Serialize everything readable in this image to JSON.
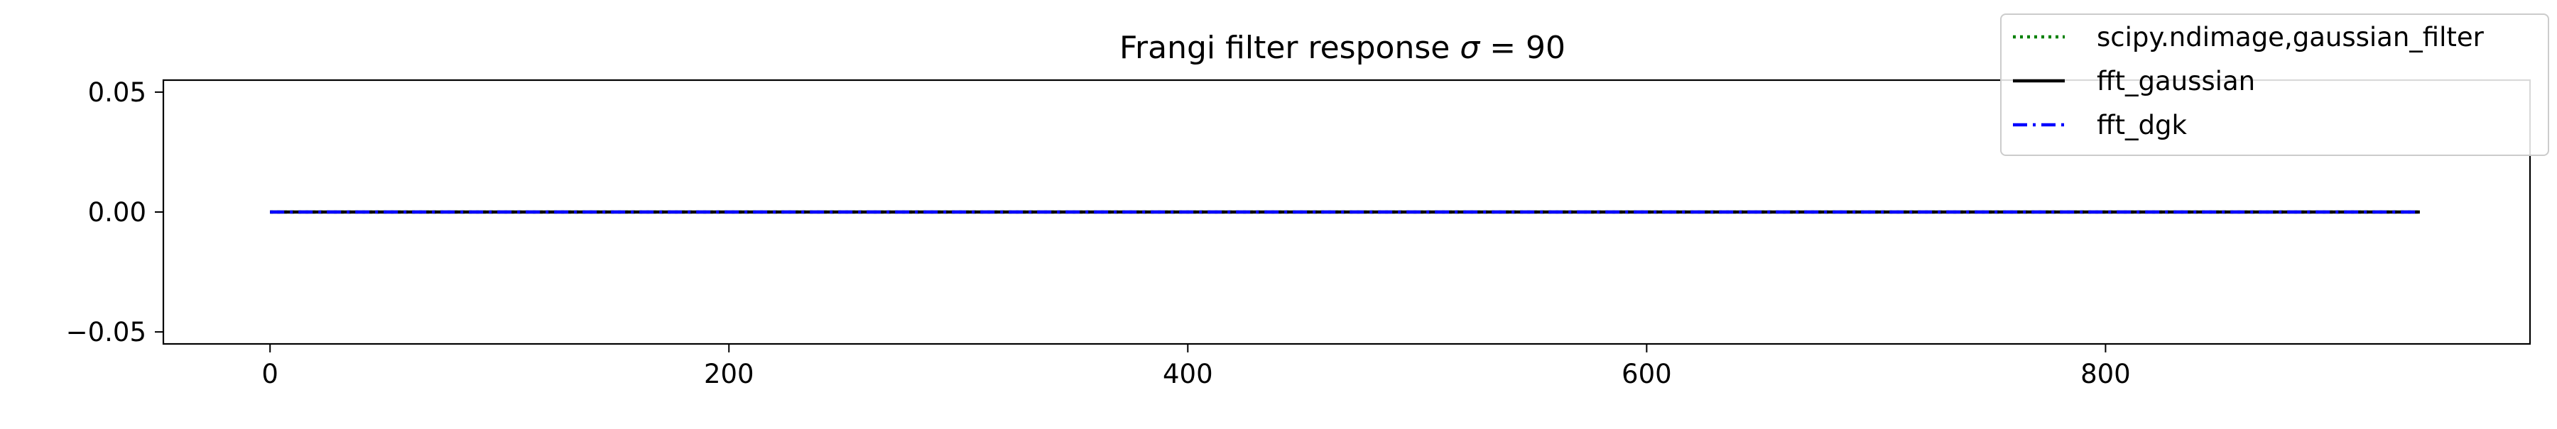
{
  "chart_data": {
    "type": "line",
    "title": "Frangi filter response σ = 90",
    "title_main": "Frangi filter response ",
    "title_sigma": "σ",
    "title_rest": " = 90",
    "xlabel": "",
    "ylabel": "",
    "xlim": [
      -46.5,
      985
    ],
    "ylim": [
      -0.055,
      0.055
    ],
    "x_ticks": [
      0,
      200,
      400,
      600,
      800
    ],
    "x_tick_labels": [
      "0",
      "200",
      "400",
      "600",
      "800"
    ],
    "y_ticks": [
      0.05,
      0.0,
      -0.05
    ],
    "y_tick_labels": [
      "0.05",
      "0.00",
      "−0.05"
    ],
    "grid": false,
    "legend_placement": "top-right",
    "series": [
      {
        "name": "scipy.ndimage,gaussian_filter",
        "x": [
          0,
          937
        ],
        "y": [
          0.0,
          0.0
        ],
        "color": "#008000",
        "style": "dotted"
      },
      {
        "name": "fft_gaussian",
        "x": [
          0,
          937
        ],
        "y": [
          0.0,
          0.0
        ],
        "color": "#000000",
        "style": "solid"
      },
      {
        "name": "fft_dgk",
        "x": [
          0,
          937
        ],
        "y": [
          0.0,
          0.0
        ],
        "color": "#0000ff",
        "style": "dashdot"
      }
    ]
  }
}
